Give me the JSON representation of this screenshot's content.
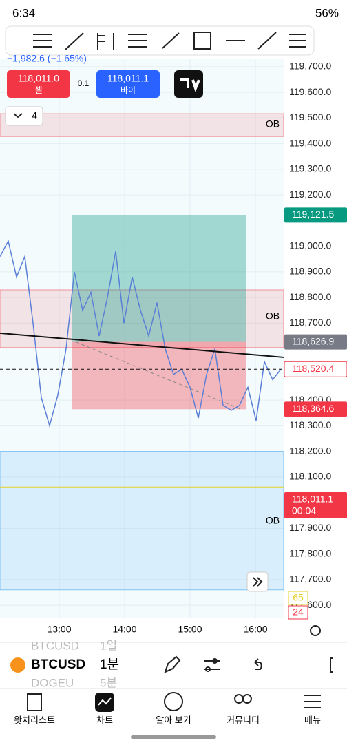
{
  "status_bar": {
    "time": "6:34",
    "battery": "56%"
  },
  "change": "−1,982.6 (−1.65%)",
  "trade": {
    "sell_price": "118,011.0",
    "sell_label": "셀",
    "quantity": "0.1",
    "buy_price": "118,011.1",
    "buy_label": "바이"
  },
  "layers_count": "4",
  "chart": {
    "type": "line",
    "ylim": [
      117552,
      119732
    ],
    "yticks": [
      {
        "value": 119700,
        "label": "119,700.0"
      },
      {
        "value": 119600,
        "label": "119,600.0"
      },
      {
        "value": 119500,
        "label": "119,500.0"
      },
      {
        "value": 119400,
        "label": "119,400.0"
      },
      {
        "value": 119300,
        "label": "119,300.0"
      },
      {
        "value": 119200,
        "label": "119,200.0"
      },
      {
        "value": 119000,
        "label": "119,000.0"
      },
      {
        "value": 118900,
        "label": "118,900.0"
      },
      {
        "value": 118800,
        "label": "118,800.0"
      },
      {
        "value": 118700,
        "label": "118,700.0"
      },
      {
        "value": 118400,
        "label": "118,400.0"
      },
      {
        "value": 118300,
        "label": "118,300.0"
      },
      {
        "value": 118200,
        "label": "118,200.0"
      },
      {
        "value": 118100,
        "label": "118,100.0"
      },
      {
        "value": 117900,
        "label": "117,900.0"
      },
      {
        "value": 117800,
        "label": "117,800.0"
      },
      {
        "value": 117700,
        "label": "117,700.0"
      },
      {
        "value": 117600,
        "label": "117,600.0"
      }
    ],
    "price_series": {
      "color": "#5b7fd6",
      "values": [
        118960,
        119020,
        118880,
        118960,
        118700,
        118410,
        118300,
        118420,
        118600,
        118900,
        118750,
        118820,
        118650,
        118800,
        118980,
        118700,
        118880,
        118750,
        118650,
        118780,
        118600,
        118500,
        118520,
        118450,
        118330,
        118500,
        118600,
        118380,
        118360,
        118380,
        118450,
        118320,
        118550,
        118480,
        118520
      ]
    },
    "price_tags": [
      {
        "value": 119121.5,
        "label": "119,121.5",
        "color": "#089981"
      },
      {
        "value": 118626.9,
        "label": "118,626.9",
        "color": "#787b86"
      },
      {
        "value": 118520.4,
        "label": "118,520.4",
        "color": "#ffffff"
      },
      {
        "value": 118364.6,
        "label": "118,364.6",
        "color": "#f23645"
      }
    ],
    "last_price": {
      "value": 118011.1,
      "label": "118,011.1",
      "countdown": "00:04",
      "color": "#f23645"
    },
    "indicator_tags": [
      "65",
      "24"
    ],
    "zones": [
      {
        "top": 119517,
        "bottom": 119428,
        "color": "#f23645",
        "label": "OB"
      },
      {
        "top": 118830,
        "bottom": 118605,
        "color": "#f23645",
        "label": "OB"
      },
      {
        "top": 118200,
        "bottom": 117660,
        "color": "#2196f3",
        "label": "OB"
      }
    ],
    "yellow_line": 118060,
    "profit_box": [
      119121.5,
      118626.9
    ],
    "loss_box": [
      118626.9,
      118364.6
    ],
    "trendline": [
      118661,
      118567
    ],
    "time_labels": [
      "13:00",
      "14:00",
      "15:00",
      "16:00"
    ]
  },
  "symbol_bar": {
    "symbol": "BTCUSD",
    "interval": "1분",
    "ghost": [
      "BTCUSD",
      "1일",
      "DOGEU",
      "5분"
    ]
  },
  "nav": [
    "왓치리스트",
    "차트",
    "알아 보기",
    "커뮤니티",
    "메뉴"
  ]
}
